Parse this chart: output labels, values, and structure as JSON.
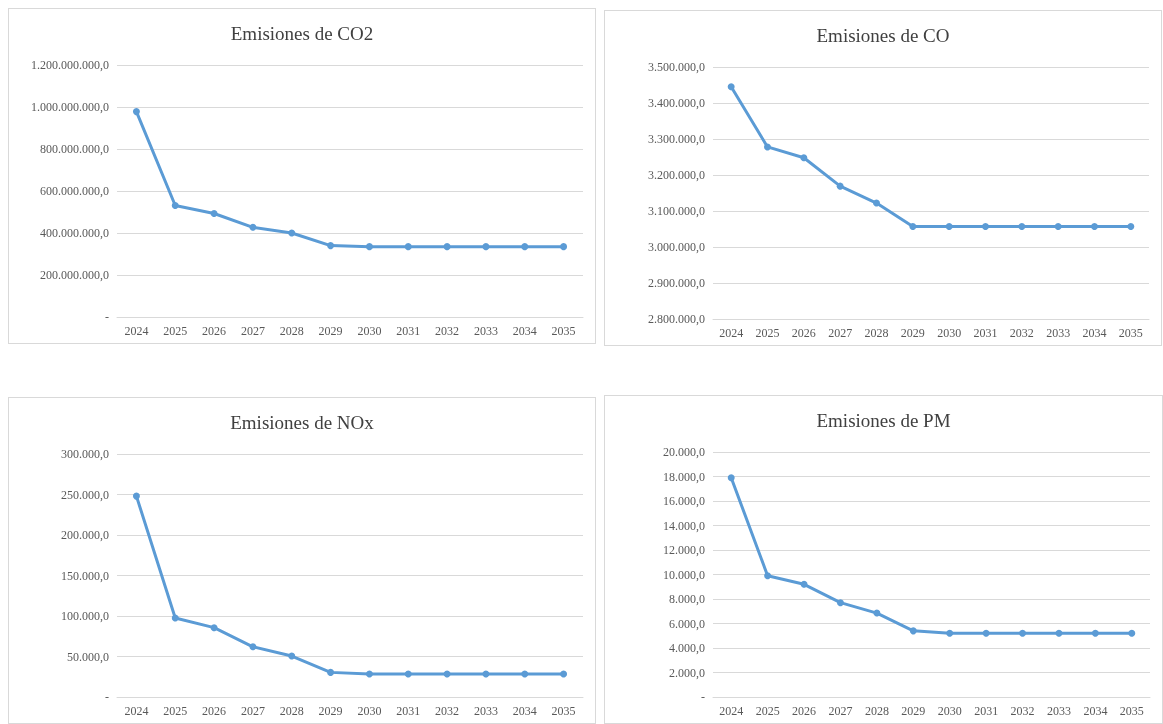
{
  "chart_data": [
    {
      "type": "line",
      "title": "Emisiones de CO2",
      "categories": [
        "2024",
        "2025",
        "2026",
        "2027",
        "2028",
        "2029",
        "2030",
        "2031",
        "2032",
        "2033",
        "2034",
        "2035"
      ],
      "series": [
        {
          "color": "#5b9bd5",
          "values": [
            978000000,
            531000000,
            493000000,
            427000000,
            400000000,
            340000000,
            335000000,
            335000000,
            335000000,
            335000000,
            335000000,
            335000000
          ]
        }
      ],
      "ylim": [
        0,
        1200000000
      ],
      "yticks": [
        {
          "value": 0,
          "label": "-"
        },
        {
          "value": 200000000,
          "label": "200.000.000,0"
        },
        {
          "value": 400000000,
          "label": "400.000.000,0"
        },
        {
          "value": 600000000,
          "label": "600.000.000,0"
        },
        {
          "value": 800000000,
          "label": "800.000.000,0"
        },
        {
          "value": 1000000000,
          "label": "1.000.000.000,0"
        },
        {
          "value": 1200000000,
          "label": "1.200.000.000,0"
        }
      ],
      "grid": "y",
      "marker": "circle",
      "line_style": "solid"
    },
    {
      "type": "line",
      "title": "Emisiones de CO",
      "categories": [
        "2024",
        "2025",
        "2026",
        "2027",
        "2028",
        "2029",
        "2030",
        "2031",
        "2032",
        "2033",
        "2034",
        "2035"
      ],
      "series": [
        {
          "color": "#5b9bd5",
          "values": [
            3445000,
            3278000,
            3248000,
            3169000,
            3122000,
            3057000,
            3057000,
            3057000,
            3057000,
            3057000,
            3057000,
            3057000
          ]
        }
      ],
      "ylim": [
        2800000,
        3500000
      ],
      "yticks": [
        {
          "value": 2800000,
          "label": "2.800.000,0"
        },
        {
          "value": 2900000,
          "label": "2.900.000,0"
        },
        {
          "value": 3000000,
          "label": "3.000.000,0"
        },
        {
          "value": 3100000,
          "label": "3.100.000,0"
        },
        {
          "value": 3200000,
          "label": "3.200.000,0"
        },
        {
          "value": 3300000,
          "label": "3.300.000,0"
        },
        {
          "value": 3400000,
          "label": "3.400.000,0"
        },
        {
          "value": 3500000,
          "label": "3.500.000,0"
        }
      ],
      "grid": "y",
      "marker": "circle",
      "line_style": "solid"
    },
    {
      "type": "line",
      "title": "Emisiones de NOx",
      "categories": [
        "2024",
        "2025",
        "2026",
        "2027",
        "2028",
        "2029",
        "2030",
        "2031",
        "2032",
        "2033",
        "2034",
        "2035"
      ],
      "series": [
        {
          "color": "#5b9bd5",
          "values": [
            248000,
            97500,
            85600,
            62000,
            50600,
            30400,
            28500,
            28500,
            28500,
            28500,
            28500,
            28500
          ]
        }
      ],
      "ylim": [
        0,
        300000
      ],
      "yticks": [
        {
          "value": 0,
          "label": "-"
        },
        {
          "value": 50000,
          "label": "50.000,0"
        },
        {
          "value": 100000,
          "label": "100.000,0"
        },
        {
          "value": 150000,
          "label": "150.000,0"
        },
        {
          "value": 200000,
          "label": "200.000,0"
        },
        {
          "value": 250000,
          "label": "250.000,0"
        },
        {
          "value": 300000,
          "label": "300.000,0"
        }
      ],
      "grid": "y",
      "marker": "circle",
      "line_style": "solid"
    },
    {
      "type": "line",
      "title": "Emisiones de PM",
      "categories": [
        "2024",
        "2025",
        "2026",
        "2027",
        "2028",
        "2029",
        "2030",
        "2031",
        "2032",
        "2033",
        "2034",
        "2035"
      ],
      "series": [
        {
          "color": "#5b9bd5",
          "values": [
            17900,
            9900,
            9200,
            7700,
            6850,
            5400,
            5200,
            5200,
            5200,
            5200,
            5200,
            5200
          ]
        }
      ],
      "ylim": [
        0,
        20000
      ],
      "yticks": [
        {
          "value": 0,
          "label": "-"
        },
        {
          "value": 2000,
          "label": "2.000,0"
        },
        {
          "value": 4000,
          "label": "4.000,0"
        },
        {
          "value": 6000,
          "label": "6.000,0"
        },
        {
          "value": 8000,
          "label": "8.000,0"
        },
        {
          "value": 10000,
          "label": "10.000,0"
        },
        {
          "value": 12000,
          "label": "12.000,0"
        },
        {
          "value": 14000,
          "label": "14.000,0"
        },
        {
          "value": 16000,
          "label": "16.000,0"
        },
        {
          "value": 18000,
          "label": "18.000,0"
        },
        {
          "value": 20000,
          "label": "20.000,0"
        }
      ],
      "grid": "y",
      "marker": "circle",
      "line_style": "solid"
    }
  ]
}
